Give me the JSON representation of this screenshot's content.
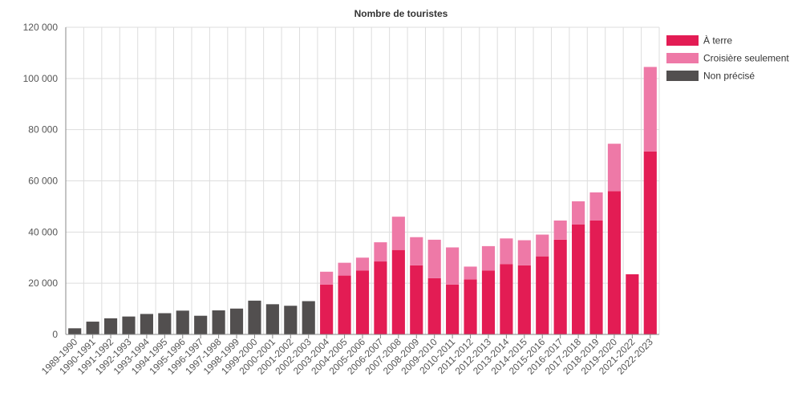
{
  "chart_data": {
    "type": "bar",
    "stacked": true,
    "title": "Nombre de touristes",
    "xlabel": "",
    "ylabel": "",
    "ylim": [
      0,
      120000
    ],
    "yticks": [
      0,
      20000,
      40000,
      60000,
      80000,
      100000,
      120000
    ],
    "ytick_labels": [
      "0",
      "20 000",
      "40 000",
      "60 000",
      "80 000",
      "100 000",
      "120 000"
    ],
    "grid": true,
    "legend_position": "top-right",
    "categories": [
      "1989-1990",
      "1990-1991",
      "1991-1992",
      "1992-1993",
      "1993-1994",
      "1994-1995",
      "1995-1996",
      "1996-1997",
      "1997-1998",
      "1998-1999",
      "1999-2000",
      "2000-2001",
      "2001-2002",
      "2002-2003",
      "2003-2004",
      "2004-2005",
      "2005-2006",
      "2006-2007",
      "2007-2008",
      "2008-2009",
      "2009-2010",
      "2010-2011",
      "2011-2012",
      "2012-2013",
      "2013-2014",
      "2014-2015",
      "2015-2016",
      "2016-2017",
      "2017-2018",
      "2018-2019",
      "2019-2020",
      "2021-2022",
      "2022-2023"
    ],
    "series": [
      {
        "name": "À terre",
        "color": "#e31c54",
        "values": [
          0,
          0,
          0,
          0,
          0,
          0,
          0,
          0,
          0,
          0,
          0,
          0,
          0,
          0,
          19500,
          23000,
          25000,
          28500,
          33000,
          27000,
          22000,
          19500,
          21500,
          25000,
          27500,
          27000,
          30500,
          37000,
          43000,
          44500,
          56000,
          23500,
          71500
        ]
      },
      {
        "name": "Croisière seulement",
        "color": "#ee79a7",
        "values": [
          0,
          0,
          0,
          0,
          0,
          0,
          0,
          0,
          0,
          0,
          0,
          0,
          0,
          0,
          5000,
          5000,
          5000,
          7500,
          13000,
          11000,
          15000,
          14500,
          5000,
          9500,
          10000,
          9800,
          8500,
          7500,
          9000,
          11000,
          18500,
          0,
          33000
        ]
      },
      {
        "name": "Non précisé",
        "color": "#524f4f",
        "values": [
          2400,
          5000,
          6300,
          7000,
          8000,
          8300,
          9300,
          7300,
          9400,
          10100,
          13200,
          11800,
          11200,
          13000,
          0,
          0,
          0,
          0,
          0,
          0,
          0,
          0,
          0,
          0,
          0,
          0,
          0,
          0,
          0,
          0,
          0,
          0,
          0
        ]
      }
    ]
  }
}
